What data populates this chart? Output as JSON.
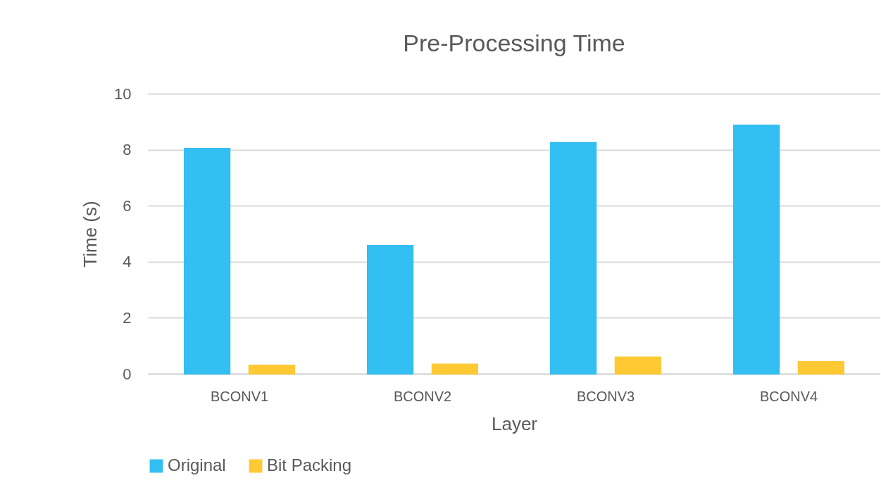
{
  "chart_data": {
    "type": "bar",
    "title": "Pre-Processing Time",
    "xlabel": "Layer",
    "ylabel": "Time (s)",
    "categories": [
      "BCONV1",
      "BCONV2",
      "BCONV3",
      "BCONV4"
    ],
    "series": [
      {
        "name": "Original",
        "color": "#33bff2",
        "values": [
          8.04,
          4.57,
          8.25,
          8.87
        ]
      },
      {
        "name": "Bit Packing",
        "color": "#ffc933",
        "values": [
          0.3,
          0.34,
          0.59,
          0.43
        ]
      }
    ],
    "ylim": [
      0,
      10
    ],
    "yticks": [
      0,
      2,
      4,
      6,
      8,
      10
    ],
    "grid": "y",
    "legend": "bottom"
  }
}
